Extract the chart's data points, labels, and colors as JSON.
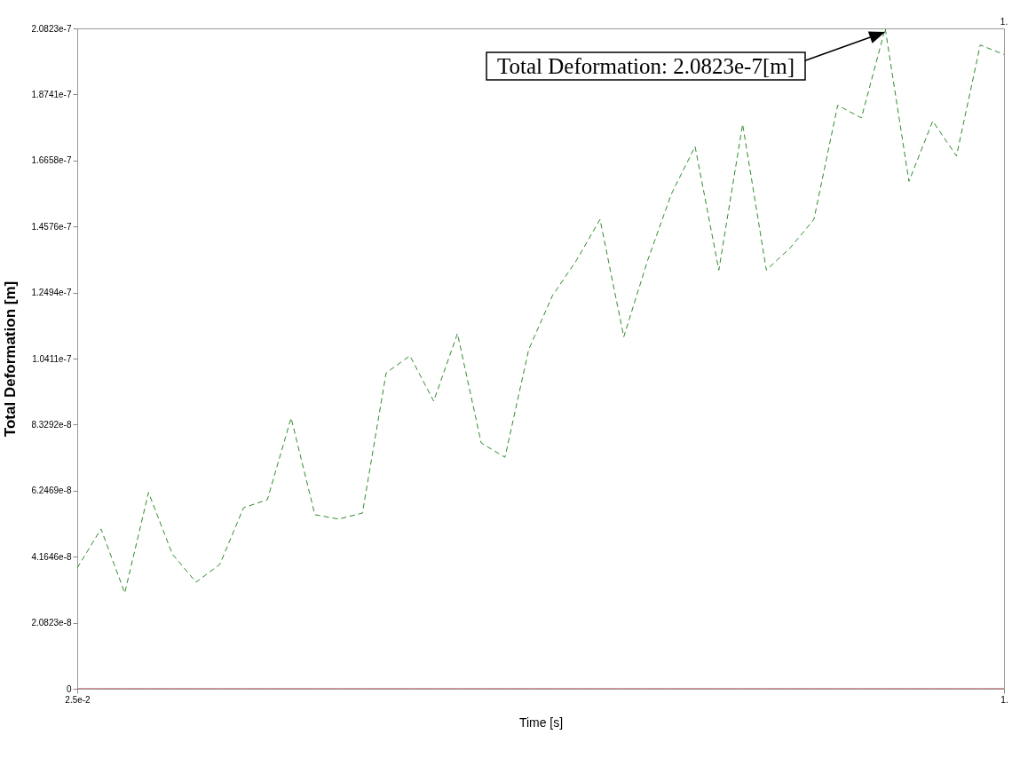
{
  "chart_data": {
    "type": "line",
    "xlabel": "Time [s]",
    "ylabel": "Total Deformation [m]",
    "x": [
      0.025,
      0.05,
      0.075,
      0.1,
      0.125,
      0.15,
      0.175,
      0.2,
      0.225,
      0.25,
      0.275,
      0.3,
      0.325,
      0.35,
      0.375,
      0.4,
      0.425,
      0.45,
      0.475,
      0.5,
      0.525,
      0.55,
      0.575,
      0.6,
      0.625,
      0.65,
      0.675,
      0.7,
      0.725,
      0.75,
      0.775,
      0.8,
      0.825,
      0.85,
      0.875,
      0.9,
      0.925,
      0.95,
      0.975,
      1
    ],
    "series": [
      {
        "color": "#2e8b2e",
        "line_style": "dashed",
        "values": [
          3.81e-08,
          5.04e-08,
          3.02e-08,
          6.19e-08,
          4.25e-08,
          3.36e-08,
          3.92e-08,
          5.71e-08,
          5.96e-08,
          8.54e-08,
          5.49e-08,
          5.35e-08,
          5.54e-08,
          9.96e-08,
          1.05e-07,
          9.07e-08,
          1.12e-07,
          7.75e-08,
          7.3e-08,
          1.07e-07,
          1.24e-07,
          1.35e-07,
          1.48e-07,
          1.11e-07,
          1.35e-07,
          1.56e-07,
          1.71e-07,
          1.32e-07,
          1.78e-07,
          1.32e-07,
          1.39e-07,
          1.48e-07,
          1.84e-07,
          1.8e-07,
          2.0823e-07,
          1.6e-07,
          1.79e-07,
          1.68e-07,
          2.03e-07,
          2e-07
        ]
      },
      {
        "color": "#b22222",
        "line_style": "solid",
        "values": [
          0,
          0,
          0,
          0,
          0,
          0,
          0,
          0,
          0,
          0,
          0,
          0,
          0,
          0,
          0,
          0,
          0,
          0,
          0,
          0,
          0,
          0,
          0,
          0,
          0,
          0,
          0,
          0,
          0,
          0,
          0,
          0,
          0,
          0,
          0,
          0,
          0,
          0,
          0,
          0
        ]
      }
    ],
    "xlim": [
      0.025,
      1
    ],
    "xticks": [
      {
        "value": 0.025,
        "label": "2.5e-2"
      },
      {
        "value": 1,
        "label": "1."
      }
    ],
    "ylim": [
      0,
      2.0823e-07
    ],
    "yticks": [
      0,
      {
        "value": 2.0823e-08,
        "label": "2.0823e-8"
      },
      {
        "value": 4.1646e-08,
        "label": "4.1646e-8"
      },
      {
        "value": 6.2469e-08,
        "label": "6.2469e-8"
      },
      {
        "value": 8.3292e-08,
        "label": "8.3292e-8"
      },
      {
        "value": 1.0411e-07,
        "label": "1.0411e-7"
      },
      {
        "value": 1.2494e-07,
        "label": "1.2494e-7"
      },
      {
        "value": 1.4576e-07,
        "label": "1.4576e-7"
      },
      {
        "value": 1.6658e-07,
        "label": "1.6658e-7"
      },
      {
        "value": 1.8741e-07,
        "label": "1.8741e-7"
      },
      {
        "value": 2.0823e-07,
        "label": "2.0823e-7"
      }
    ],
    "grid": false,
    "marker": "none",
    "annotations": [
      "Total Deformation: 2.0823e-7[m]",
      "1."
    ]
  }
}
